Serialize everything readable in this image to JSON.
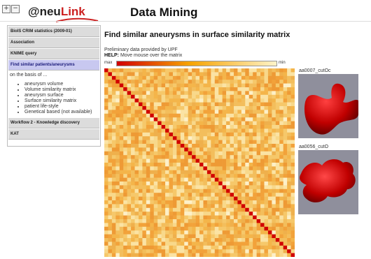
{
  "header": {
    "btn_plus": "+",
    "btn_minus": "−",
    "logo_prefix": "@neu",
    "logo_accent": "Link",
    "title": "Data Mining"
  },
  "sidebar": {
    "items": [
      {
        "label": "BioIS CRIM statistics (2009-01)"
      },
      {
        "label": "Association"
      },
      {
        "label": "KNIME query"
      },
      {
        "label": "Find similar patients/aneurysms"
      }
    ],
    "description": "on the basis of ...",
    "bullets": [
      "aneurysm volume",
      "Volume similarity matrix",
      "aneurysm surface",
      "Surface similarity matrix",
      "patient life-style",
      "Genetical based (not available)"
    ],
    "items_after": [
      {
        "label": "Workflow 2 - Knowledge discovery"
      },
      {
        "label": "KAT"
      }
    ]
  },
  "main": {
    "title": "Find similar aneurysms in surface similarity matrix",
    "preliminary": "Preliminary data provided by UPF",
    "help_label": "HELP:",
    "help_text": " Move mouse over the matrix",
    "scale_max": "max",
    "scale_min": "min"
  },
  "thumbnails": [
    {
      "label": "aa0007_cutOc"
    },
    {
      "label": "aa0056_cutO"
    }
  ],
  "colors": {
    "accent_red": "#cc2020",
    "active_item": "#c8c8f0",
    "matrix_high": "#d10000",
    "matrix_low": "#fff3c8"
  }
}
